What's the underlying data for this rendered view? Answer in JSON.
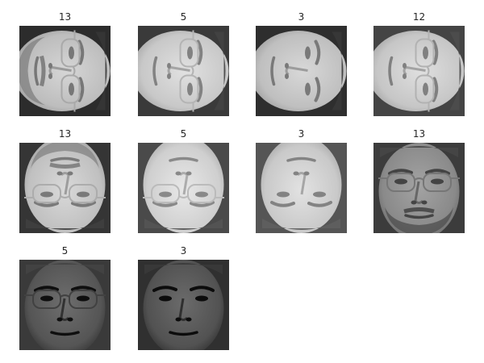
{
  "faces": [
    {
      "label": "13",
      "orientation": "rot90",
      "tone": "light",
      "bg": "#2c2c2c",
      "skin": "#bdbdbd",
      "glasses": true,
      "beard": true
    },
    {
      "label": "5",
      "orientation": "rot90",
      "tone": "light",
      "bg": "#3a3a3a",
      "skin": "#c8c8c8",
      "glasses": true,
      "beard": false
    },
    {
      "label": "3",
      "orientation": "rot90",
      "tone": "light",
      "bg": "#2e2e2e",
      "skin": "#bfbfbf",
      "glasses": false,
      "beard": false
    },
    {
      "label": "12",
      "orientation": "rot90",
      "tone": "light",
      "bg": "#444444",
      "skin": "#c6c6c6",
      "glasses": true,
      "beard": false
    },
    {
      "label": "13",
      "orientation": "rot180",
      "tone": "light",
      "bg": "#353535",
      "skin": "#c0c0c0",
      "glasses": true,
      "beard": true
    },
    {
      "label": "5",
      "orientation": "rot180",
      "tone": "light",
      "bg": "#4a4a4a",
      "skin": "#cfcfcf",
      "glasses": true,
      "beard": false
    },
    {
      "label": "3",
      "orientation": "rot180",
      "tone": "light",
      "bg": "#555555",
      "skin": "#c9c9c9",
      "glasses": false,
      "beard": false
    },
    {
      "label": "13",
      "orientation": "upright",
      "tone": "medium",
      "bg": "#3c3c3c",
      "skin": "#8a8a8a",
      "glasses": true,
      "beard": true
    },
    {
      "label": "5",
      "orientation": "upright",
      "tone": "dark",
      "bg": "#3a3a3a",
      "skin": "#555555",
      "glasses": true,
      "beard": false
    },
    {
      "label": "3",
      "orientation": "upright",
      "tone": "dark",
      "bg": "#303030",
      "skin": "#525252",
      "glasses": false,
      "beard": false
    }
  ]
}
